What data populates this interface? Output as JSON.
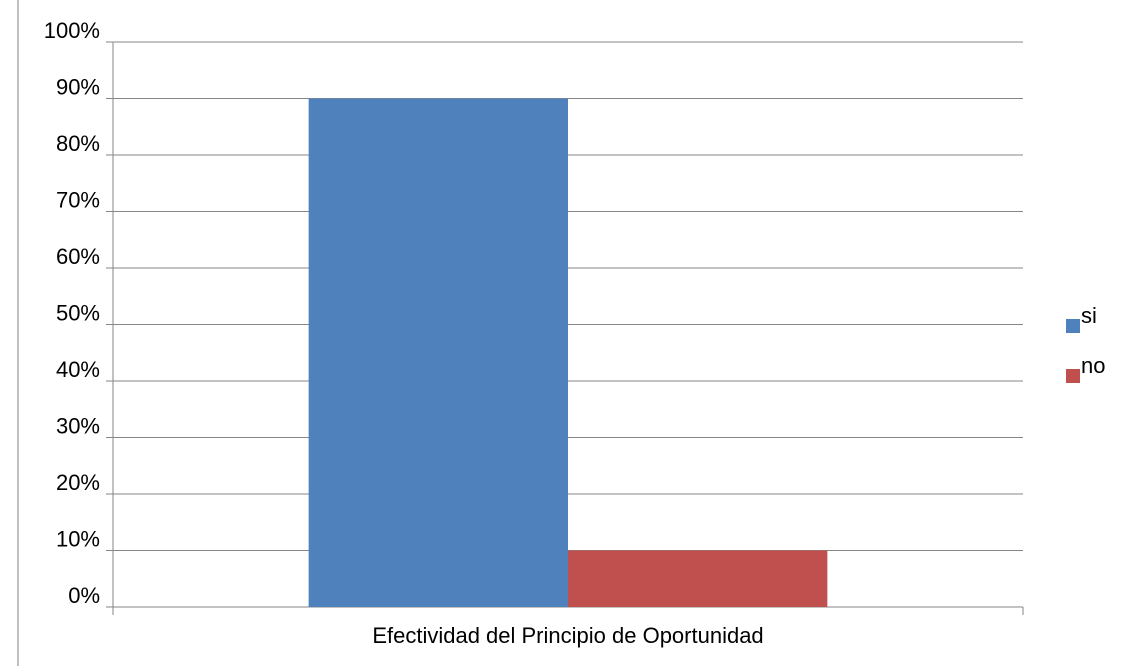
{
  "chart_data": {
    "type": "bar",
    "categories": [
      "Efectividad del Principio de Oportunidad"
    ],
    "series": [
      {
        "name": "si",
        "color": "#4f81bd",
        "values": [
          90
        ]
      },
      {
        "name": "no",
        "color": "#c0504d",
        "values": [
          10
        ]
      }
    ],
    "ylim": [
      0,
      100
    ],
    "yticks": [
      {
        "value": 0,
        "label": "0%"
      },
      {
        "value": 10,
        "label": "10%"
      },
      {
        "value": 20,
        "label": "20%"
      },
      {
        "value": 30,
        "label": "30%"
      },
      {
        "value": 40,
        "label": "40%"
      },
      {
        "value": 50,
        "label": "50%"
      },
      {
        "value": 60,
        "label": "60%"
      },
      {
        "value": 70,
        "label": "70%"
      },
      {
        "value": 80,
        "label": "80%"
      },
      {
        "value": 90,
        "label": "90%"
      },
      {
        "value": 100,
        "label": "100%"
      }
    ],
    "grid": true,
    "legend": "right"
  }
}
